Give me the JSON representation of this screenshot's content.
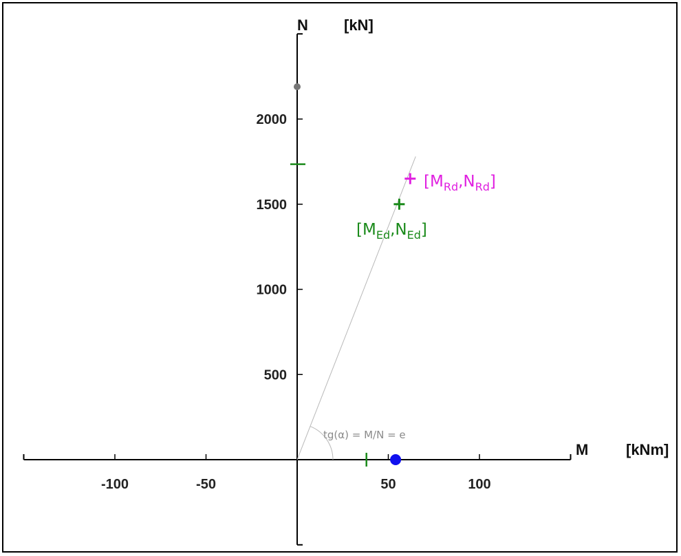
{
  "chart_data": {
    "type": "scatter",
    "x_axis": {
      "symbol": "M",
      "unit": "[kNm]",
      "range": [
        -150,
        150
      ],
      "ticks": [
        -100,
        -50,
        50,
        100
      ]
    },
    "y_axis": {
      "symbol": "N",
      "unit": "[kN]",
      "range": [
        -500,
        2500
      ],
      "ticks": [
        500,
        1000,
        1500,
        2000
      ]
    },
    "grid": false,
    "points": [
      {
        "id": "rd",
        "x": 62,
        "y": 1650,
        "marker": "plus",
        "color": "#e020e0",
        "label": {
          "open": "[M",
          "sub1": "Rd",
          "mid": ",N",
          "sub2": "Rd",
          "close": "]"
        }
      },
      {
        "id": "ed",
        "x": 56,
        "y": 1500,
        "marker": "plus",
        "color": "#1a8a1a",
        "label": {
          "open": "[M",
          "sub1": "Ed",
          "mid": ",N",
          "sub2": "Ed",
          "close": "]"
        }
      },
      {
        "id": "n-max",
        "x": 0,
        "y": 2190,
        "marker": "dot",
        "color": "#777777"
      },
      {
        "id": "m-max",
        "x": 54,
        "y": 0,
        "marker": "dot",
        "color": "#1010ee"
      },
      {
        "id": "n-mark",
        "x": 0,
        "y": 1735,
        "marker": "h-tick",
        "color": "#1a8a1a"
      },
      {
        "id": "m-mark",
        "x": 38,
        "y": 0,
        "marker": "v-tick",
        "color": "#1a8a1a"
      }
    ],
    "eccentricity_line": {
      "from": [
        0,
        0
      ],
      "to": [
        65,
        1780
      ],
      "color": "#b8b8b8"
    },
    "angle_annotation": "tg(α) = M/N = e"
  }
}
